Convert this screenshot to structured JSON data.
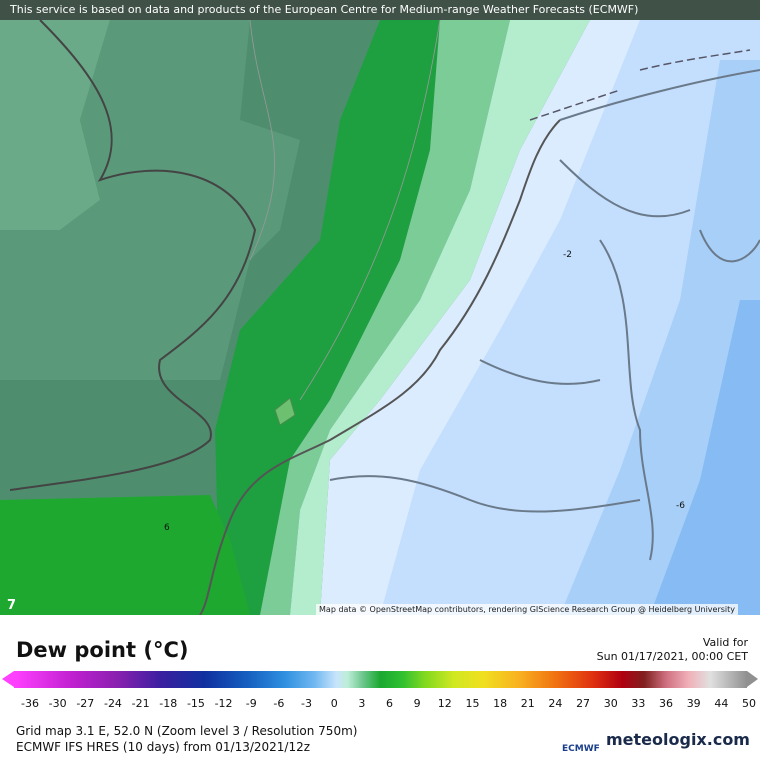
{
  "banner": "This service is based on data and products of the European Centre for Medium-range Weather Forecasts (ECMWF)",
  "map_labels": [
    "-2",
    "-6",
    "6",
    "7"
  ],
  "attribution": "Map data © OpenStreetMap contributors, rendering GIScience Research Group @ Heidelberg University",
  "title": "Dew point (°C)",
  "valid_label": "Valid for",
  "valid_time": "Sun 01/17/2021, 00:00 CET",
  "colorbar_labels": [
    -36,
    -30,
    -27,
    -24,
    -21,
    -18,
    -15,
    -12,
    -9,
    -6,
    -3,
    0,
    3,
    6,
    9,
    12,
    15,
    18,
    21,
    24,
    27,
    30,
    33,
    36,
    39,
    44,
    50
  ],
  "grid_info": "Grid map 3.1 E, 52.0 N (Zoom level 3 / Resolution 750m)",
  "model_info": "ECMWF IFS HRES (10 days) from 01/13/2021/12z",
  "ecmwf_logo": "ECMWF",
  "site": "meteologix.com"
}
